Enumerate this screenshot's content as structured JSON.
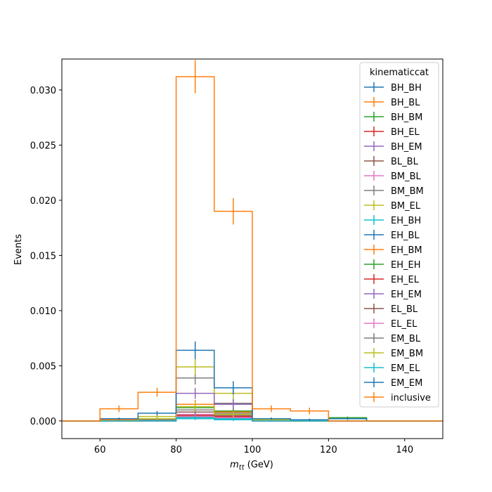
{
  "chart_data": {
    "type": "step-histogram",
    "xlabel_main": "m",
    "xlabel_sub": "tt",
    "xlabel_unit": " (GeV)",
    "ylabel": "Events",
    "xlim": [
      50,
      150
    ],
    "ylim": [
      -0.0016,
      0.0328
    ],
    "xticks": [
      60,
      80,
      100,
      120,
      140
    ],
    "yticks": [
      0.0,
      0.005,
      0.01,
      0.015,
      0.02,
      0.025,
      0.03
    ],
    "ytick_labels": [
      "0.000",
      "0.005",
      "0.010",
      "0.015",
      "0.020",
      "0.025",
      "0.030"
    ],
    "bin_edges": [
      50,
      60,
      70,
      80,
      90,
      100,
      110,
      120,
      130,
      140,
      150
    ],
    "legend_title": "kinematiccat",
    "legend_position": "top-right",
    "series": [
      {
        "name": "BH_BH",
        "color": "#1f77b4",
        "values": [
          0,
          0.0002,
          0.0002,
          0.0003,
          0.0003,
          0.0001,
          0,
          0,
          0,
          0
        ],
        "errors": [
          0,
          0.0001,
          0.0001,
          0.0002,
          0.0002,
          0.0001,
          0,
          0,
          0,
          0
        ]
      },
      {
        "name": "BH_BL",
        "color": "#ff7f0e",
        "values": [
          0,
          0.0001,
          0.0002,
          0.0004,
          0.0003,
          0.0001,
          0,
          0,
          0,
          0
        ],
        "errors": [
          0,
          0.0001,
          0.0001,
          0.0002,
          0.0002,
          0.0001,
          0,
          0,
          0,
          0
        ]
      },
      {
        "name": "BH_BM",
        "color": "#2ca02c",
        "values": [
          0,
          0,
          0.0001,
          0.0004,
          0.0003,
          0.0001,
          0.0001,
          0,
          0,
          0
        ],
        "errors": [
          0,
          0,
          0.0001,
          0.0002,
          0.0002,
          0.0001,
          0.0001,
          0,
          0,
          0
        ]
      },
      {
        "name": "BH_EL",
        "color": "#d62728",
        "values": [
          0,
          0,
          0,
          0.0003,
          0.0002,
          0,
          0,
          0,
          0,
          0
        ],
        "errors": [
          0,
          0,
          0,
          0.0002,
          0.0001,
          0,
          0,
          0,
          0,
          0
        ]
      },
      {
        "name": "BH_EM",
        "color": "#9467bd",
        "values": [
          0,
          0,
          0.0001,
          0.0005,
          0.0004,
          0.0001,
          0,
          0,
          0,
          0
        ],
        "errors": [
          0,
          0,
          0.0001,
          0.0002,
          0.0002,
          0.0001,
          0,
          0,
          0,
          0
        ]
      },
      {
        "name": "BL_BL",
        "color": "#8c564b",
        "values": [
          0,
          0,
          0,
          0.0002,
          0.0002,
          0,
          0,
          0,
          0,
          0
        ],
        "errors": [
          0,
          0,
          0,
          0.0001,
          0.0001,
          0,
          0,
          0,
          0,
          0
        ]
      },
      {
        "name": "BM_BL",
        "color": "#e377c2",
        "values": [
          0,
          0,
          0.0001,
          0.0006,
          0.0004,
          0.0001,
          0,
          0,
          0,
          0
        ],
        "errors": [
          0,
          0,
          0.0001,
          0.0002,
          0.0002,
          0.0001,
          0,
          0,
          0,
          0
        ]
      },
      {
        "name": "BM_BM",
        "color": "#7f7f7f",
        "values": [
          0,
          0,
          0.0001,
          0.0039,
          0.0016,
          0.0002,
          0,
          0,
          0,
          0
        ],
        "errors": [
          0,
          0,
          0.0001,
          0.0006,
          0.0004,
          0.0001,
          0,
          0,
          0,
          0
        ]
      },
      {
        "name": "BM_EL",
        "color": "#bcbd22",
        "values": [
          0,
          0,
          0.0004,
          0.0049,
          0.0025,
          0.0002,
          0.0001,
          0.0002,
          0,
          0
        ],
        "errors": [
          0,
          0,
          0.0001,
          0.0007,
          0.0005,
          0.0001,
          0.0001,
          0.0001,
          0,
          0
        ]
      },
      {
        "name": "EH_BH",
        "color": "#17becf",
        "values": [
          0,
          0,
          0,
          0.0002,
          0.0001,
          0,
          0,
          0,
          0,
          0
        ],
        "errors": [
          0,
          0,
          0,
          0.0001,
          0.0001,
          0,
          0,
          0,
          0,
          0
        ]
      },
      {
        "name": "EH_BL",
        "color": "#1f77b4",
        "values": [
          0,
          0,
          0.0001,
          0.0003,
          0.0002,
          0,
          0,
          0,
          0,
          0
        ],
        "errors": [
          0,
          0,
          0.0001,
          0.0002,
          0.0001,
          0,
          0,
          0,
          0,
          0
        ]
      },
      {
        "name": "EH_BM",
        "color": "#ff7f0e",
        "values": [
          0,
          0,
          0.0002,
          0.0015,
          0.0008,
          0.0001,
          0,
          0,
          0,
          0
        ],
        "errors": [
          0,
          0,
          0.0001,
          0.0004,
          0.0003,
          0.0001,
          0,
          0,
          0,
          0
        ]
      },
      {
        "name": "EH_EH",
        "color": "#2ca02c",
        "values": [
          0,
          0,
          0.0001,
          0.0012,
          0.0009,
          0.0001,
          0,
          0.0003,
          0,
          0
        ],
        "errors": [
          0,
          0,
          0.0001,
          0.0003,
          0.0003,
          0.0001,
          0,
          0.0001,
          0,
          0
        ]
      },
      {
        "name": "EH_EL",
        "color": "#d62728",
        "values": [
          0,
          0,
          0,
          0.0005,
          0.0004,
          0,
          0,
          0,
          0,
          0
        ],
        "errors": [
          0,
          0,
          0,
          0.0002,
          0.0002,
          0,
          0,
          0,
          0,
          0
        ]
      },
      {
        "name": "EH_EM",
        "color": "#9467bd",
        "values": [
          0,
          0,
          0.0001,
          0.0025,
          0.0015,
          0.0002,
          0,
          0,
          0,
          0
        ],
        "errors": [
          0,
          0,
          0.0001,
          0.0005,
          0.0004,
          0.0001,
          0,
          0,
          0,
          0
        ]
      },
      {
        "name": "EL_BL",
        "color": "#8c564b",
        "values": [
          0,
          0,
          0,
          0.0008,
          0.0005,
          0,
          0,
          0,
          0,
          0
        ],
        "errors": [
          0,
          0,
          0,
          0.0003,
          0.0002,
          0,
          0,
          0,
          0,
          0
        ]
      },
      {
        "name": "EL_EL",
        "color": "#e377c2",
        "values": [
          0,
          0,
          0,
          0.0004,
          0.0003,
          0,
          0,
          0,
          0,
          0
        ],
        "errors": [
          0,
          0,
          0,
          0.0002,
          0.0002,
          0,
          0,
          0,
          0,
          0
        ]
      },
      {
        "name": "EM_BL",
        "color": "#7f7f7f",
        "values": [
          0,
          0,
          0.0001,
          0.001,
          0.0007,
          0.0001,
          0,
          0,
          0,
          0
        ],
        "errors": [
          0,
          0,
          0.0001,
          0.0003,
          0.0003,
          0.0001,
          0,
          0,
          0,
          0
        ]
      },
      {
        "name": "EM_BM",
        "color": "#bcbd22",
        "values": [
          0,
          0,
          0.0002,
          0.0013,
          0.0006,
          0.0001,
          0,
          0,
          0,
          0
        ],
        "errors": [
          0,
          0,
          0.0001,
          0.0004,
          0.0003,
          0.0001,
          0,
          0,
          0,
          0
        ]
      },
      {
        "name": "EM_EL",
        "color": "#17becf",
        "values": [
          0,
          0,
          0,
          0.0003,
          0.0002,
          0,
          0,
          0,
          0,
          0
        ],
        "errors": [
          0,
          0,
          0,
          0.0002,
          0.0001,
          0,
          0,
          0,
          0,
          0
        ]
      },
      {
        "name": "EM_EM",
        "color": "#1f77b4",
        "values": [
          0,
          0.0002,
          0.0007,
          0.0064,
          0.003,
          0.0002,
          0.0001,
          0.0002,
          0,
          0
        ],
        "errors": [
          0,
          0.0001,
          0.0002,
          0.0008,
          0.0006,
          0.0001,
          0.0001,
          0.0001,
          0,
          0
        ]
      },
      {
        "name": "inclusive",
        "color": "#ff7f0e",
        "values": [
          0,
          0.0011,
          0.0026,
          0.0312,
          0.019,
          0.0011,
          0.0009,
          0,
          0,
          0
        ],
        "errors": [
          0,
          0.0003,
          0.0004,
          0.0015,
          0.0012,
          0.0003,
          0.0003,
          0,
          0,
          0
        ]
      }
    ]
  }
}
